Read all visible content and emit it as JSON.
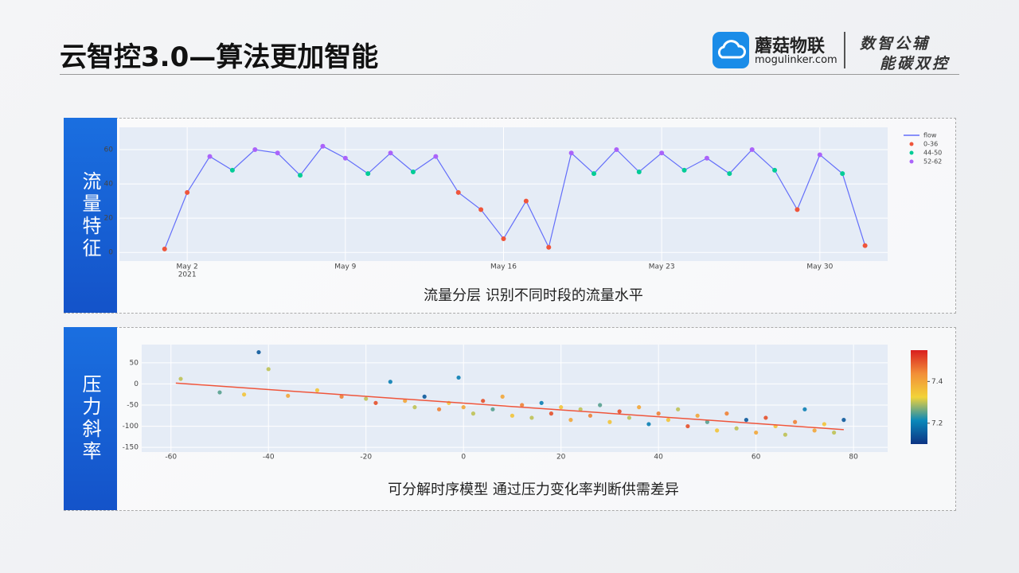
{
  "header": {
    "title": "云智控3.0—算法更加智能",
    "brand": "蘑菇物联",
    "site": "mogulinker.com",
    "slogan": [
      "数智公辅",
      "能碳双控"
    ]
  },
  "panels": [
    {
      "label": "流量特征",
      "caption": "流量分层 识别不同时段的流量水平"
    },
    {
      "label": "压力斜率",
      "caption": "可分解时序模型 通过压力变化率判断供需差异"
    }
  ],
  "chart_data": [
    {
      "type": "line",
      "legend": "right",
      "grid": true,
      "x": [
        "2021-05-01",
        "2021-05-02",
        "2021-05-03",
        "2021-05-04",
        "2021-05-05",
        "2021-05-06",
        "2021-05-07",
        "2021-05-08",
        "2021-05-09",
        "2021-05-10",
        "2021-05-11",
        "2021-05-12",
        "2021-05-13",
        "2021-05-14",
        "2021-05-15",
        "2021-05-16",
        "2021-05-17",
        "2021-05-18",
        "2021-05-19",
        "2021-05-20",
        "2021-05-21",
        "2021-05-22",
        "2021-05-23",
        "2021-05-24",
        "2021-05-25",
        "2021-05-26",
        "2021-05-27",
        "2021-05-28",
        "2021-05-29",
        "2021-05-30",
        "2021-05-31",
        "2021-06-01"
      ],
      "xlim": [
        "2021-04-29",
        "2021-06-02"
      ],
      "xticks": [
        {
          "value": "2021-05-02",
          "label": "May 2"
        },
        {
          "value": "2021-05-09",
          "label": "May 9"
        },
        {
          "value": "2021-05-16",
          "label": "May 16"
        },
        {
          "value": "2021-05-23",
          "label": "May 23"
        },
        {
          "value": "2021-05-30",
          "label": "May 30"
        }
      ],
      "x_year_label": "2021",
      "ylim": [
        -5,
        73
      ],
      "yticks": [
        0,
        20,
        40,
        60
      ],
      "series": [
        {
          "name": "flow",
          "color": "#636efa",
          "mode": "line",
          "values": [
            2,
            35,
            56,
            48,
            60,
            58,
            45,
            62,
            55,
            46,
            58,
            47,
            56,
            35,
            25,
            8,
            30,
            3,
            58,
            46,
            60,
            47,
            58,
            48,
            55,
            46,
            60,
            48,
            25,
            57,
            46,
            4
          ]
        },
        {
          "name": "0-36",
          "color": "#ef553b",
          "mode": "markers",
          "values": [
            2,
            35,
            null,
            null,
            null,
            null,
            null,
            null,
            null,
            null,
            null,
            null,
            null,
            35,
            25,
            8,
            30,
            3,
            null,
            null,
            null,
            null,
            null,
            null,
            null,
            null,
            null,
            null,
            25,
            null,
            null,
            4
          ]
        },
        {
          "name": "44-50",
          "color": "#00cc96",
          "mode": "markers",
          "values": [
            null,
            null,
            null,
            48,
            null,
            null,
            45,
            null,
            null,
            46,
            null,
            47,
            null,
            null,
            null,
            null,
            null,
            null,
            null,
            46,
            null,
            47,
            null,
            48,
            null,
            46,
            null,
            48,
            null,
            null,
            46,
            null
          ]
        },
        {
          "name": "52-62",
          "color": "#ab63fa",
          "mode": "markers",
          "values": [
            null,
            null,
            56,
            null,
            60,
            58,
            null,
            62,
            55,
            null,
            58,
            null,
            56,
            null,
            null,
            null,
            null,
            null,
            58,
            null,
            60,
            null,
            58,
            null,
            55,
            null,
            60,
            null,
            null,
            57,
            null,
            null
          ]
        }
      ]
    },
    {
      "type": "scatter",
      "grid": true,
      "x": [
        -58,
        -50,
        -45,
        -42,
        -40,
        -36,
        -30,
        -25,
        -20,
        -18,
        -15,
        -12,
        -10,
        -8,
        -5,
        -3,
        -1,
        0,
        2,
        4,
        6,
        8,
        10,
        12,
        14,
        16,
        18,
        20,
        22,
        24,
        26,
        28,
        30,
        32,
        34,
        36,
        38,
        40,
        42,
        44,
        46,
        48,
        50,
        52,
        54,
        56,
        58,
        60,
        62,
        64,
        66,
        68,
        70,
        72,
        74,
        76,
        78
      ],
      "y": [
        12,
        -20,
        -25,
        75,
        35,
        -28,
        -15,
        -30,
        -35,
        -45,
        5,
        -40,
        -55,
        -30,
        -60,
        -45,
        15,
        -55,
        -70,
        -40,
        -60,
        -30,
        -75,
        -50,
        -80,
        -45,
        -70,
        -55,
        -85,
        -60,
        -75,
        -50,
        -90,
        -65,
        -80,
        -55,
        -95,
        -70,
        -85,
        -60,
        -100,
        -75,
        -90,
        -110,
        -70,
        -105,
        -85,
        -115,
        -80,
        -100,
        -120,
        -90,
        -60,
        -110,
        -95,
        -115,
        -85
      ],
      "color_values": [
        7.3,
        7.25,
        7.35,
        7.15,
        7.3,
        7.4,
        7.35,
        7.45,
        7.3,
        7.5,
        7.2,
        7.4,
        7.3,
        7.15,
        7.45,
        7.35,
        7.2,
        7.4,
        7.3,
        7.5,
        7.25,
        7.4,
        7.35,
        7.45,
        7.3,
        7.2,
        7.5,
        7.35,
        7.4,
        7.3,
        7.45,
        7.25,
        7.35,
        7.5,
        7.3,
        7.4,
        7.2,
        7.45,
        7.35,
        7.3,
        7.5,
        7.4,
        7.25,
        7.35,
        7.45,
        7.3,
        7.15,
        7.4,
        7.5,
        7.35,
        7.3,
        7.45,
        7.2,
        7.4,
        7.35,
        7.3,
        7.15
      ],
      "colorscale": [
        "#0c3383",
        "#0a88ba",
        "#f2d338",
        "#f28f38",
        "#d91e1e"
      ],
      "clim": [
        7.1,
        7.55
      ],
      "cticks": [
        7.2,
        7.4
      ],
      "trendline": {
        "x": [
          -59,
          78
        ],
        "y": [
          2,
          -108
        ],
        "color": "#ef553b"
      },
      "xlim": [
        -66,
        87
      ],
      "xticks": [
        -60,
        -40,
        -20,
        0,
        20,
        40,
        60,
        80
      ],
      "ylim": [
        -161,
        93
      ],
      "yticks": [
        50,
        0,
        -50,
        -100,
        -150
      ]
    }
  ]
}
